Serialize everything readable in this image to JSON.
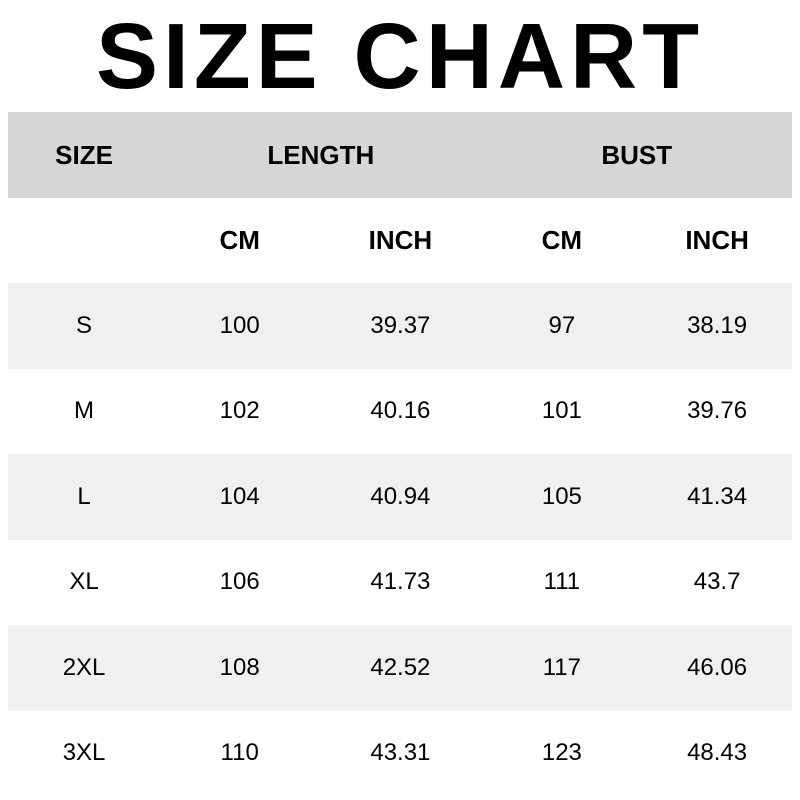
{
  "title": "SIZE CHART",
  "colors": {
    "bg": "#ffffff",
    "header_band": "#d6d6d6",
    "row_band": "#f0f0f0",
    "text": "#000000"
  },
  "table": {
    "groups": {
      "size": "SIZE",
      "length": "LENGTH",
      "bust": "BUST"
    },
    "subheaders": {
      "length_cm": "CM",
      "length_inch": "INCH",
      "bust_cm": "CM",
      "bust_inch": "INCH"
    },
    "rows": [
      {
        "size": "S",
        "cells": [
          "100",
          "39.37",
          "97",
          "38.19"
        ]
      },
      {
        "size": "M",
        "cells": [
          "102",
          "40.16",
          "101",
          "39.76"
        ]
      },
      {
        "size": "L",
        "cells": [
          "104",
          "40.94",
          "105",
          "41.34"
        ]
      },
      {
        "size": "XL",
        "cells": [
          "106",
          "41.73",
          "111",
          "43.7"
        ]
      },
      {
        "size": "2XL",
        "cells": [
          "108",
          "42.52",
          "117",
          "46.06"
        ]
      },
      {
        "size": "3XL",
        "cells": [
          "110",
          "43.31",
          "123",
          "48.43"
        ]
      }
    ]
  },
  "chart_data": {
    "type": "table",
    "title": "SIZE CHART",
    "column_groups": [
      "SIZE",
      "LENGTH",
      "BUST"
    ],
    "columns": [
      "SIZE",
      "LENGTH CM",
      "LENGTH INCH",
      "BUST CM",
      "BUST INCH"
    ],
    "rows": [
      [
        "S",
        100,
        39.37,
        97,
        38.19
      ],
      [
        "M",
        102,
        40.16,
        101,
        39.76
      ],
      [
        "L",
        104,
        40.94,
        105,
        41.34
      ],
      [
        "XL",
        106,
        41.73,
        111,
        43.7
      ],
      [
        "2XL",
        108,
        42.52,
        117,
        46.06
      ],
      [
        "3XL",
        110,
        43.31,
        123,
        48.43
      ]
    ]
  }
}
